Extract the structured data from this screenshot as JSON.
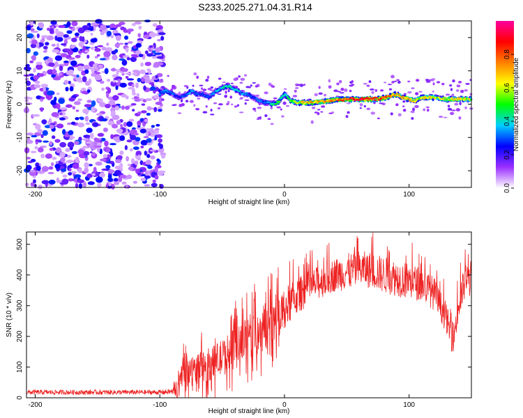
{
  "title": "S233.2025.271.04.31.R14",
  "chart_data": [
    {
      "type": "heatmap",
      "xlabel": "Height of straight line (km)",
      "ylabel": "Frequency (Hz)",
      "xlim": [
        -207,
        150
      ],
      "ylim": [
        -25,
        25
      ],
      "xticks": [
        -200,
        -100,
        0,
        100
      ],
      "yticks": [
        -20,
        -10,
        0,
        10,
        20
      ],
      "colorbar": {
        "label": "Normalized spectral amplitude",
        "range": [
          0,
          1
        ],
        "ticks": [
          "0.0",
          "0.2",
          "0.4",
          "0.6",
          "0.8"
        ],
        "colors": [
          "#ffffff",
          "#9b30ff",
          "#0000ff",
          "#00d0ff",
          "#00ff00",
          "#ffff00",
          "#ff8000",
          "#ff0000",
          "#ff00a0"
        ]
      },
      "noise_region_km": [
        -207,
        -97
      ],
      "ridge": {
        "x": [
          -100,
          -95,
          -90,
          -85,
          -80,
          -75,
          -70,
          -65,
          -60,
          -55,
          -50,
          -45,
          -40,
          -35,
          -30,
          -25,
          -20,
          -15,
          -10,
          -5,
          0,
          5,
          10,
          20,
          30,
          40,
          50,
          60,
          70,
          80,
          85,
          90,
          95,
          100,
          105,
          110,
          120,
          130,
          140,
          150
        ],
        "freq": [
          3,
          4,
          3,
          2,
          2.5,
          4,
          3,
          3,
          2,
          4,
          5,
          5.5,
          4.5,
          3.5,
          3,
          2,
          1,
          0.5,
          0,
          0.5,
          3,
          1,
          0.5,
          0.5,
          0.8,
          1.2,
          1.5,
          1.5,
          1.5,
          1.8,
          2.5,
          3,
          2,
          1.5,
          1,
          2,
          2,
          1.5,
          1.5,
          1.5
        ],
        "amp": [
          0.3,
          0.35,
          0.3,
          0.25,
          0.3,
          0.35,
          0.3,
          0.3,
          0.3,
          0.35,
          0.4,
          0.45,
          0.4,
          0.35,
          0.3,
          0.3,
          0.3,
          0.3,
          0.4,
          0.5,
          0.4,
          0.5,
          0.6,
          0.7,
          0.7,
          0.75,
          0.8,
          0.85,
          0.85,
          0.8,
          0.75,
          0.7,
          0.7,
          0.65,
          0.6,
          0.6,
          0.6,
          0.6,
          0.6,
          0.6
        ]
      }
    },
    {
      "type": "line",
      "xlabel": "Height of straight line (km)",
      "ylabel": "SNR (10 * v/v)",
      "xlim": [
        -207,
        150
      ],
      "ylim": [
        0,
        540
      ],
      "xticks": [
        -200,
        -100,
        0,
        100
      ],
      "yticks": [
        0,
        100,
        200,
        300,
        400,
        500
      ],
      "color": "#ee2222",
      "series": [
        {
          "name": "SNR",
          "x": [
            -207,
            -180,
            -150,
            -120,
            -100,
            -90,
            -85,
            -80,
            -70,
            -60,
            -50,
            -40,
            -30,
            -20,
            -10,
            0,
            10,
            20,
            30,
            40,
            50,
            60,
            70,
            80,
            90,
            100,
            110,
            120,
            125,
            130,
            135,
            140,
            145,
            150
          ],
          "mean": [
            18,
            18,
            18,
            18,
            18,
            20,
            40,
            80,
            95,
            110,
            130,
            160,
            190,
            220,
            250,
            290,
            330,
            360,
            380,
            400,
            410,
            420,
            415,
            400,
            390,
            380,
            370,
            340,
            300,
            260,
            180,
            300,
            380,
            390
          ],
          "spread": [
            8,
            8,
            8,
            8,
            8,
            10,
            40,
            50,
            50,
            55,
            60,
            70,
            75,
            80,
            80,
            70,
            60,
            55,
            55,
            55,
            60,
            60,
            60,
            60,
            60,
            60,
            55,
            55,
            50,
            50,
            40,
            60,
            60,
            60
          ]
        }
      ]
    }
  ]
}
